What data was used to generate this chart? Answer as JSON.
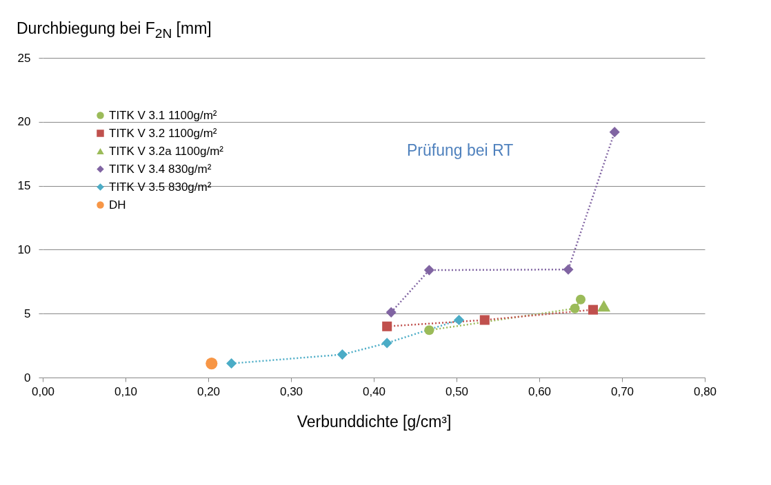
{
  "chart_data": {
    "type": "line",
    "ylabel": "Durchbiegung bei F$_{2N}$ [mm]",
    "xlabel": "Verbunddichte [g/cm³]",
    "annotations": [
      "Prüfung bei RT"
    ],
    "xlim": [
      0,
      0.8
    ],
    "xticks": [
      {
        "value": 0,
        "label": "0,00"
      },
      {
        "value": 0.1,
        "label": "0,10"
      },
      {
        "value": 0.2,
        "label": "0,20"
      },
      {
        "value": 0.3,
        "label": "0,30"
      },
      {
        "value": 0.4,
        "label": "0,40"
      },
      {
        "value": 0.5,
        "label": "0,50"
      },
      {
        "value": 0.6,
        "label": "0,60"
      },
      {
        "value": 0.7,
        "label": "0,70"
      },
      {
        "value": 0.8,
        "label": "0,80"
      }
    ],
    "ylim": [
      0,
      25
    ],
    "yticks": [
      0,
      5,
      10,
      15,
      20,
      25
    ],
    "grid": "y",
    "legend": "top left",
    "line_style": "dotted",
    "series": [
      {
        "name": "TITK V 3.1 1100g/m²",
        "type": "line",
        "marker": "circle",
        "color": "#9bbb59",
        "x": [
          0.467,
          0.643,
          0.65
        ],
        "values": [
          3.7,
          5.4,
          6.1
        ]
      },
      {
        "name": "TITK V 3.2 1100g/m²",
        "type": "line",
        "marker": "square",
        "color": "#c0504d",
        "x": [
          0.416,
          0.534,
          0.665
        ],
        "values": [
          4.0,
          4.5,
          5.3
        ]
      },
      {
        "name": "TITK V 3.2a 1100g/m²",
        "type": "scatter",
        "marker": "triangle",
        "color": "#9bbb59",
        "x": [
          0.678
        ],
        "values": [
          5.6
        ]
      },
      {
        "name": "TITK V 3.4 830g/m²",
        "type": "line",
        "marker": "diamond",
        "color": "#8064a2",
        "x": [
          0.421,
          0.467,
          0.635,
          0.691
        ],
        "values": [
          5.1,
          8.4,
          8.45,
          19.2
        ]
      },
      {
        "name": "TITK V 3.5 830g/m²",
        "type": "line",
        "marker": "diamond",
        "color": "#4bacc6",
        "x": [
          0.228,
          0.362,
          0.416,
          0.503
        ],
        "values": [
          1.1,
          1.8,
          2.7,
          4.5
        ]
      },
      {
        "name": "DH",
        "type": "scatter",
        "marker": "circle",
        "color": "#f79646",
        "x": [
          0.204
        ],
        "values": [
          1.1
        ]
      }
    ]
  }
}
